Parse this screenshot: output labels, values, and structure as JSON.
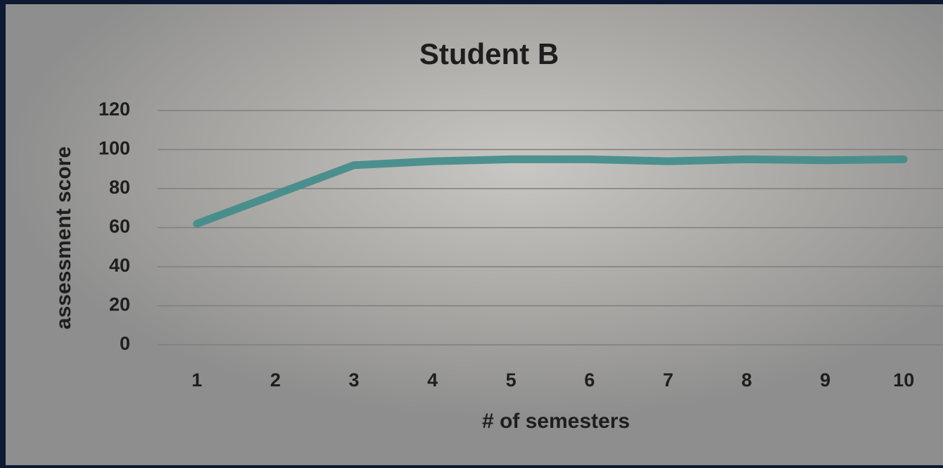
{
  "chart_data": {
    "type": "line",
    "title": "Student B",
    "x_label": "# of semesters",
    "y_label": "assessment score",
    "categories": [
      "1",
      "2",
      "3",
      "4",
      "5",
      "6",
      "7",
      "8",
      "9",
      "10"
    ],
    "series": [
      {
        "name": "Student B",
        "color": "#3f8c8a",
        "values": [
          62,
          77,
          92,
          94,
          95,
          95,
          94,
          95,
          94.5,
          95
        ]
      }
    ],
    "ylim": [
      0,
      120
    ],
    "yticks": [
      0,
      20,
      40,
      60,
      80,
      100,
      120
    ],
    "grid": true
  }
}
